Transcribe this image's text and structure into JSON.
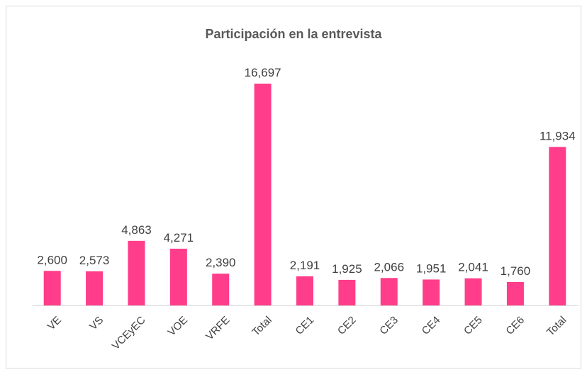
{
  "chart_data": {
    "type": "bar",
    "title": "Participación en la entrevista",
    "categories": [
      "VE",
      "VS",
      "VCEyEC",
      "VOE",
      "VRFE",
      "Total",
      "CE1",
      "CE2",
      "CE3",
      "CE4",
      "CE5",
      "CE6",
      "Total"
    ],
    "values": [
      2600,
      2573,
      4863,
      4271,
      2390,
      16697,
      2191,
      1925,
      2066,
      1951,
      2041,
      1760,
      11934
    ],
    "value_labels": [
      "2,600",
      "2,573",
      "4,863",
      "4,271",
      "2,390",
      "16,697",
      "2,191",
      "1,925",
      "2,066",
      "1,951",
      "2,041",
      "1,760",
      "11,934"
    ],
    "color": "#ff3d8b",
    "ylim": [
      0,
      18000
    ]
  }
}
